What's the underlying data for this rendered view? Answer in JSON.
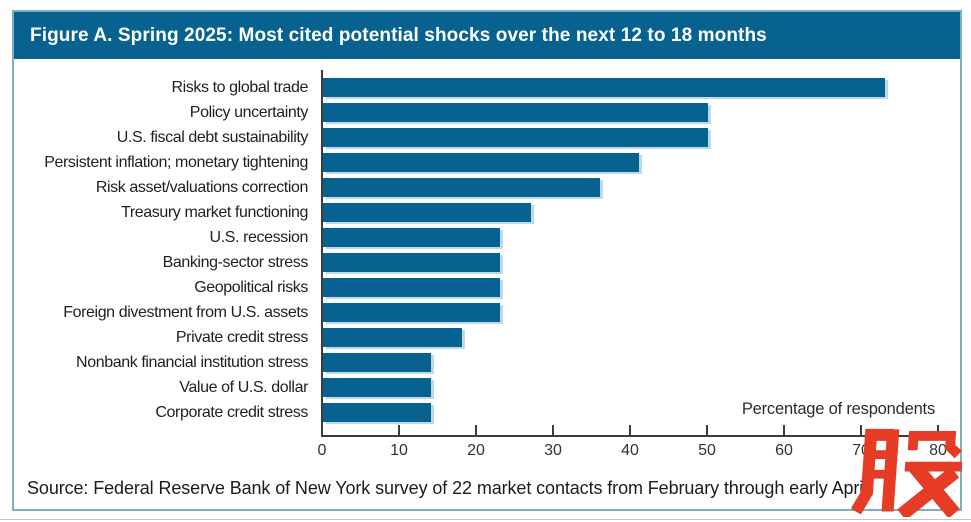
{
  "figure": {
    "title": "Figure A. Spring 2025: Most cited potential shocks over the next 12 to 18 months",
    "source": "Source: Federal Reserve Bank of New York survey of 22 market contacts from February through early April.",
    "watermark_char": "股"
  },
  "colors": {
    "header_blue": "#07628f",
    "bar_blue": "#07628f",
    "bar_shadow_blue": "#bcd9e8",
    "frame_blue": "#7fafc8",
    "watermark_red": "#e63b24"
  },
  "chart_data": {
    "type": "bar",
    "orientation": "horizontal",
    "title": "Figure A. Spring 2025: Most cited potential shocks over the next 12 to 18 months",
    "categories": [
      "Risks to global trade",
      "Policy uncertainty",
      "U.S. fiscal debt sustainability",
      "Persistent inflation; monetary tightening",
      "Risk asset/valuations correction",
      "Treasury market functioning",
      "U.S. recession",
      "Banking-sector stress",
      "Geopolitical risks",
      "Foreign divestment from U.S. assets",
      "Private credit stress",
      "Nonbank financial institution stress",
      "Value of U.S. dollar",
      "Corporate credit stress"
    ],
    "values": [
      73,
      50,
      50,
      41,
      36,
      27,
      23,
      23,
      23,
      23,
      18,
      14,
      14,
      14
    ],
    "xlabel": "Percentage of respondents",
    "xticks": [
      0,
      10,
      20,
      30,
      40,
      50,
      60,
      70,
      80
    ],
    "xlim": [
      0,
      80
    ],
    "grid": false,
    "legend": null
  }
}
